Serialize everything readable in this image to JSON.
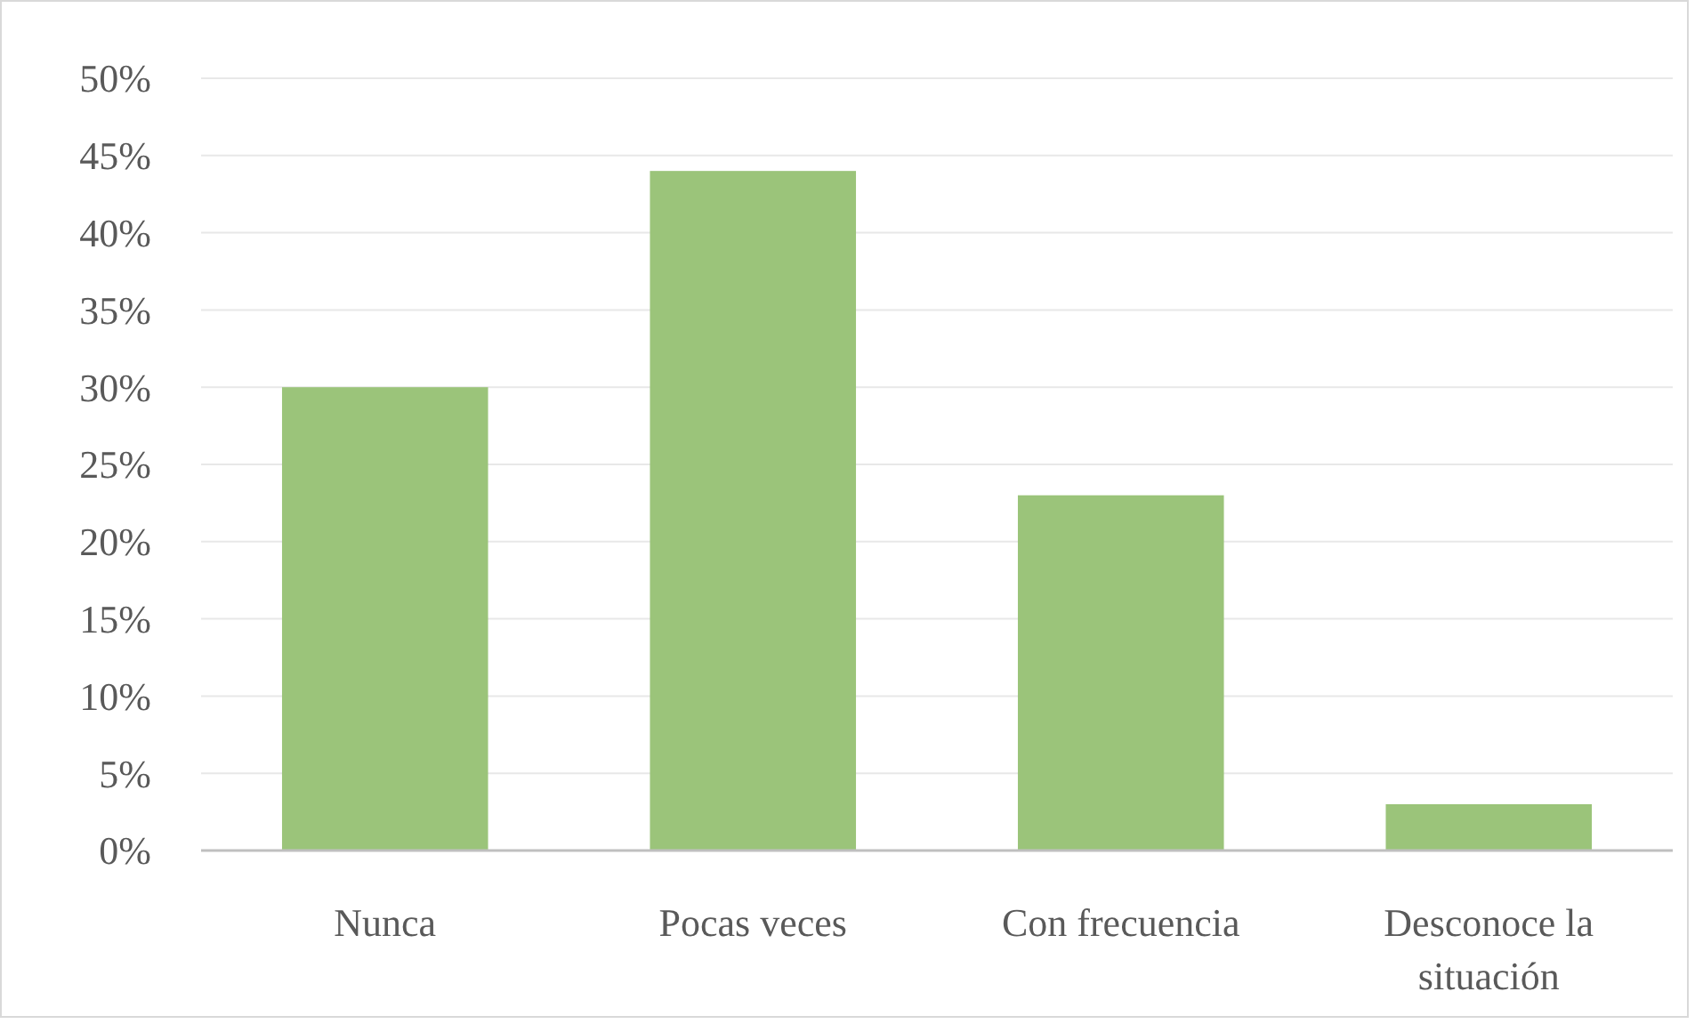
{
  "chart_data": {
    "type": "bar",
    "categories": [
      "Nunca",
      "Pocas veces",
      "Con frecuencia",
      "Desconoce la situación"
    ],
    "values": [
      30,
      44,
      23,
      3
    ],
    "color": "#9bc47a",
    "ylim": [
      0,
      50
    ],
    "yticks": [
      {
        "value": 0,
        "label": "0%"
      },
      {
        "value": 5,
        "label": "5%"
      },
      {
        "value": 10,
        "label": "10%"
      },
      {
        "value": 15,
        "label": "15%"
      },
      {
        "value": 20,
        "label": "20%"
      },
      {
        "value": 25,
        "label": "25%"
      },
      {
        "value": 30,
        "label": "30%"
      },
      {
        "value": 35,
        "label": "35%"
      },
      {
        "value": 40,
        "label": "40%"
      },
      {
        "value": 45,
        "label": "45%"
      },
      {
        "value": 50,
        "label": "50%"
      }
    ],
    "grid": "y"
  }
}
